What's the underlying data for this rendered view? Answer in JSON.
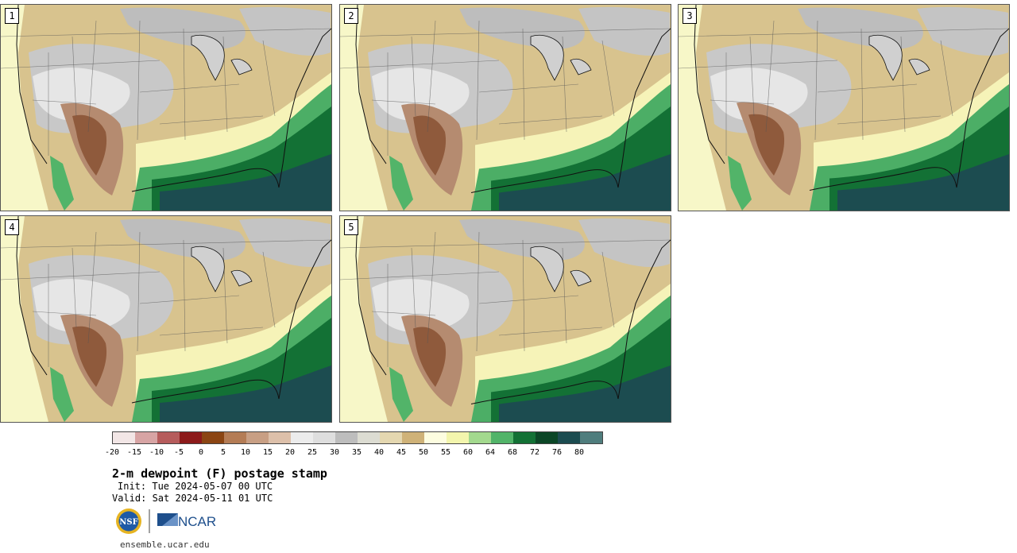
{
  "panels": [
    {
      "label": "1"
    },
    {
      "label": "2"
    },
    {
      "label": "3"
    },
    {
      "label": "4"
    },
    {
      "label": "5"
    }
  ],
  "colorbar": {
    "colors": [
      "#f2e6e6",
      "#d7a4a4",
      "#b65c5c",
      "#8c1a1a",
      "#8b4513",
      "#b47c55",
      "#c89f84",
      "#ddc0aa",
      "#ececec",
      "#dedede",
      "#bdbdbd",
      "#dcdcd2",
      "#e4d7b0",
      "#cfb278",
      "#fdfde0",
      "#f3f5ad",
      "#a3d98e",
      "#52b469",
      "#137135",
      "#0b4626",
      "#1c4c50",
      "#4f7d7d"
    ],
    "tick_labels": [
      "-20",
      "-15",
      "-10",
      "-5",
      "0",
      "5",
      "10",
      "15",
      "20",
      "25",
      "30",
      "35",
      "40",
      "45",
      "50",
      "55",
      "60",
      "64",
      "68",
      "72",
      "76",
      "80"
    ]
  },
  "title": "2-m dewpoint (F) postage stamp",
  "init": "Init: Tue 2024-05-07 00 UTC",
  "valid": "Valid: Sat 2024-05-11 01 UTC",
  "logos": {
    "nsf": "NSF",
    "ncar": "NCAR"
  },
  "url": "ensemble.ucar.edu"
}
